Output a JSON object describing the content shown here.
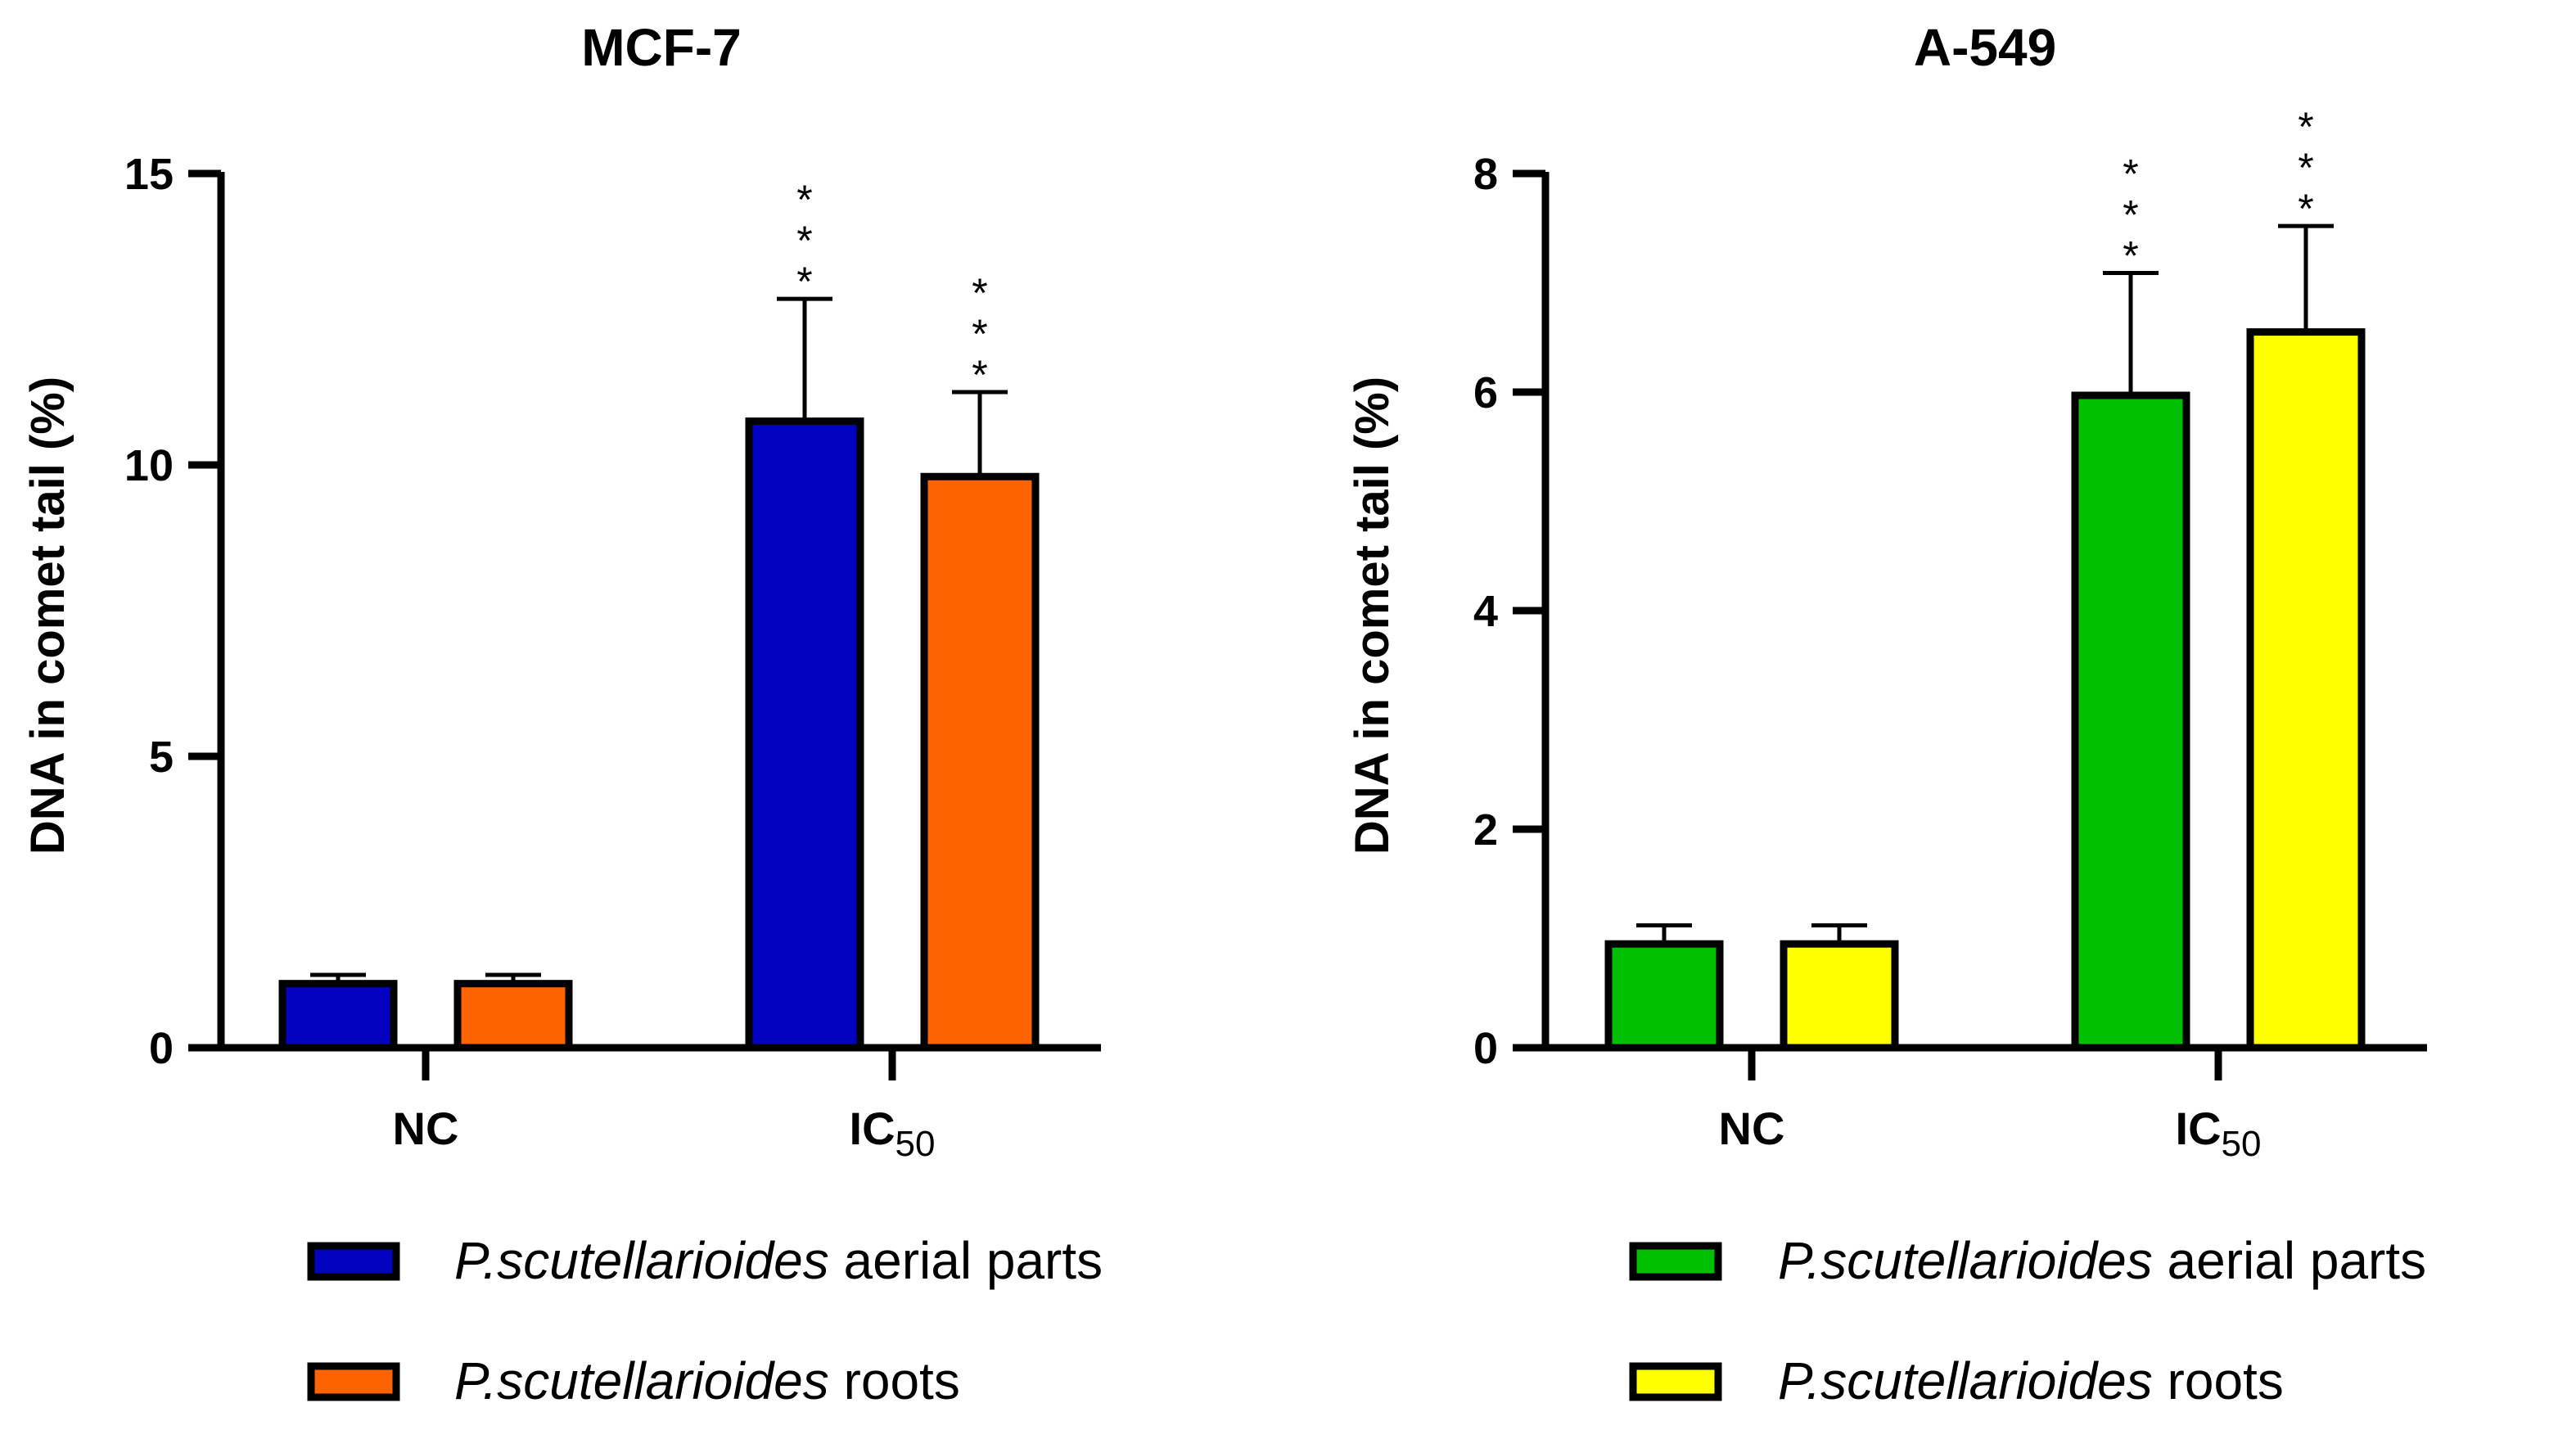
{
  "chart_data": [
    {
      "type": "bar",
      "title": "MCF-7",
      "xlabel": "",
      "ylabel": "DNA in comet tail (%)",
      "ylim": [
        0,
        15
      ],
      "yticks": [
        0,
        5,
        10,
        15
      ],
      "categories": [
        {
          "label": "NC",
          "sub": ""
        },
        {
          "label": "IC",
          "sub": "50"
        }
      ],
      "series": [
        {
          "name_italic": "P.scutellarioides",
          "name_rest": " aerial parts",
          "color": "#0202c0",
          "values": [
            1.1,
            10.75
          ],
          "errors": [
            0.15,
            2.1
          ],
          "annotations": [
            "",
            "***"
          ]
        },
        {
          "name_italic": "P.scutellarioides",
          "name_rest": " roots",
          "color": "#ff6300",
          "values": [
            1.1,
            9.8
          ],
          "errors": [
            0.15,
            1.45
          ],
          "annotations": [
            "",
            "***"
          ]
        }
      ],
      "legend_position": "bottom"
    },
    {
      "type": "bar",
      "title": "A-549",
      "xlabel": "",
      "ylabel": "DNA in comet tail (%)",
      "ylim": [
        0,
        8
      ],
      "yticks": [
        0,
        2,
        4,
        6,
        8
      ],
      "categories": [
        {
          "label": "NC",
          "sub": ""
        },
        {
          "label": "IC",
          "sub": "50"
        }
      ],
      "series": [
        {
          "name_italic": "P.scutellarioides",
          "name_rest": " aerial parts",
          "color": "#00c000",
          "values": [
            0.95,
            5.97
          ],
          "errors": [
            0.17,
            1.12
          ],
          "annotations": [
            "",
            "***"
          ]
        },
        {
          "name_italic": "P.scutellarioides",
          "name_rest": " roots",
          "color": "#ffff00",
          "values": [
            0.95,
            6.55
          ],
          "errors": [
            0.17,
            0.97
          ],
          "annotations": [
            "",
            "***"
          ]
        }
      ],
      "legend_position": "bottom"
    }
  ]
}
